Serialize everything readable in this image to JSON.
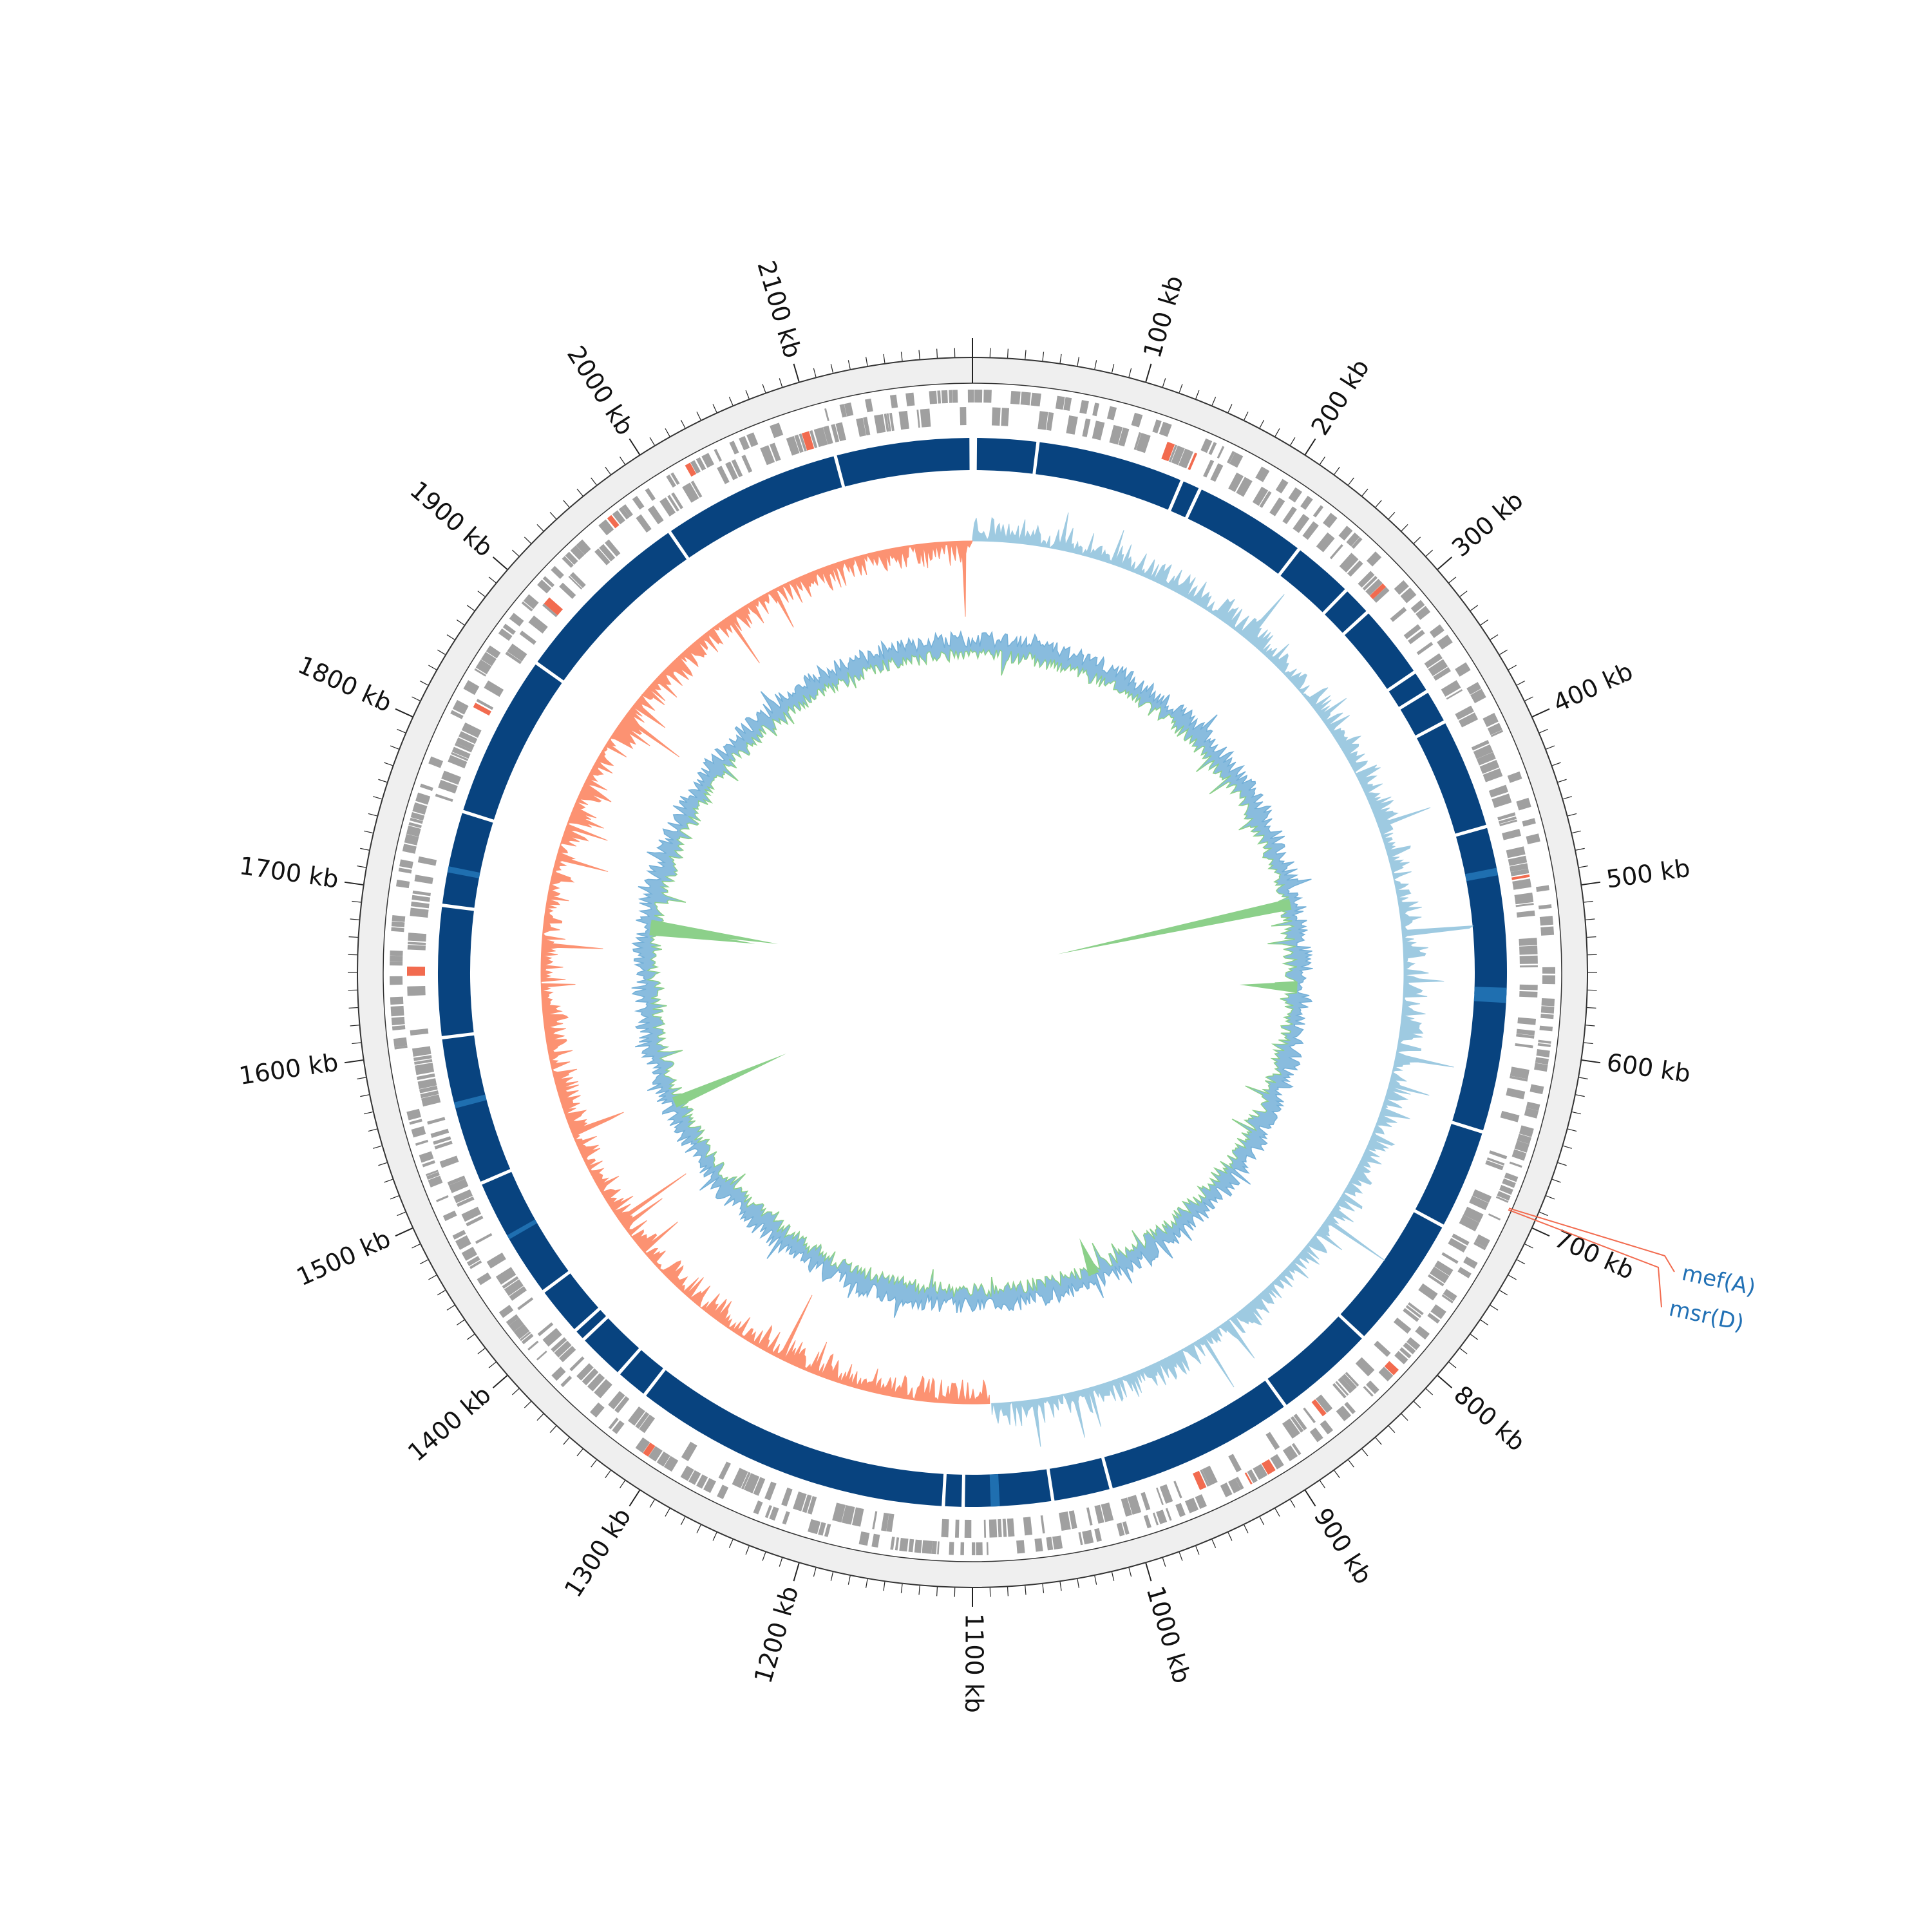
{
  "genome": {
    "length_kb": 2200,
    "tick_labels": [
      "100 kb",
      "200 kb",
      "300 kb",
      "400 kb",
      "500 kb",
      "600 kb",
      "700 kb",
      "800 kb",
      "900 kb",
      "1000 kb",
      "1100 kb",
      "1200 kb",
      "1300 kb",
      "1400 kb",
      "1500 kb",
      "1600 kb",
      "1700 kb",
      "1800 kb",
      "1900 kb",
      "2000 kb",
      "2100 kb"
    ],
    "tick_positions_kb": [
      100,
      200,
      300,
      400,
      500,
      600,
      700,
      800,
      900,
      1000,
      1100,
      1200,
      1300,
      1400,
      1500,
      1600,
      1700,
      1800,
      1900,
      2000,
      2100
    ]
  },
  "annotated_genes": [
    {
      "name": "mef(A)",
      "position_kb": 695,
      "color": "#2271b5"
    },
    {
      "name": "msr(D)",
      "position_kb": 696,
      "color": "#2271b5"
    }
  ],
  "tracks": {
    "outer_ring_color": "#efefef",
    "cds_color": "#a0a0a0",
    "resistance_color": "#f26b4f",
    "contig_color": "#08437f",
    "contig_highlight_color": "#1f6fb0",
    "gc_skew_positive_color": "#9ecae1",
    "gc_skew_negative_color": "#fc9272",
    "gc_content_above_color": "#74b0d8",
    "gc_content_below_color": "#8cd08a",
    "contig_gaps_kb": [
      42,
      140,
      153,
      229,
      270,
      290,
      340,
      355,
      378,
      452,
      565,
      655,
      722,
      812,
      880,
      1007,
      1046,
      1105,
      1118,
      1330,
      1352,
      1384,
      1392,
      1425,
      1507,
      1606,
      1693,
      1756,
      1865,
      1988,
      2108
    ]
  }
}
